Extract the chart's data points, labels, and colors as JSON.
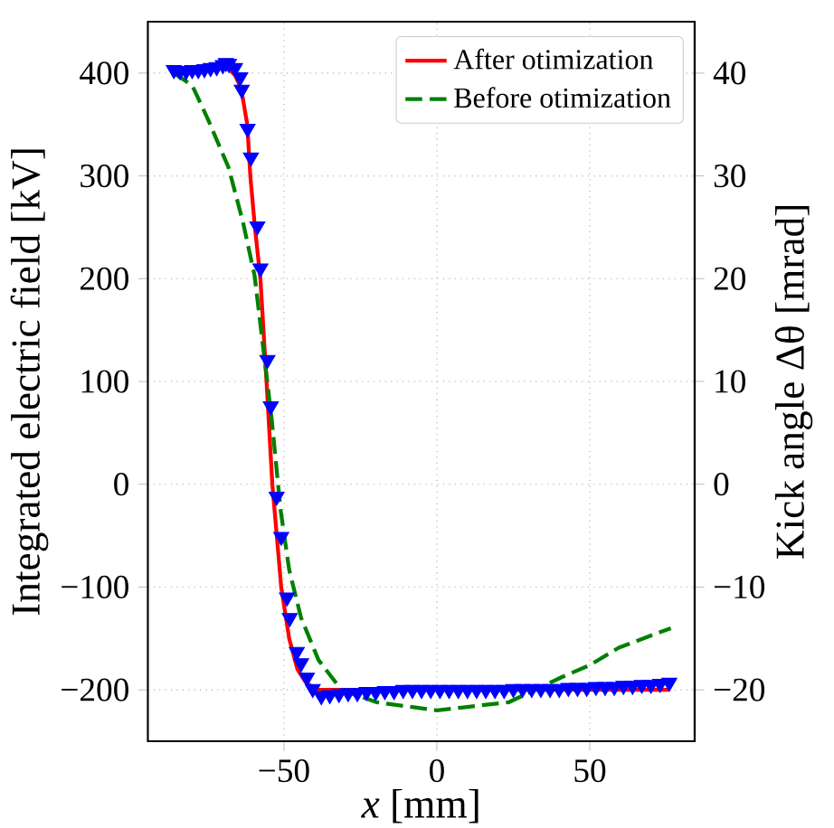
{
  "chart_data": {
    "type": "line",
    "xlabel": "*x* [mm]",
    "ylabel": "Integrated electric field [kV]",
    "y2label": "Kick angle Δθ [mrad]",
    "xlim": [
      -94.5,
      84.3
    ],
    "ylim": [
      -250,
      450
    ],
    "y2lim": [
      -25,
      45
    ],
    "xticks": [
      {
        "value": -50,
        "label": "−50"
      },
      0,
      50
    ],
    "yticks": [
      {
        "value": -200,
        "label": "−200"
      },
      {
        "value": -100,
        "label": "−100"
      },
      0,
      100,
      200,
      300,
      400
    ],
    "y2ticks": [
      {
        "value": -20,
        "label": "−20"
      },
      {
        "value": -10,
        "label": "−10"
      },
      0,
      10,
      20,
      30,
      40
    ],
    "grid": true,
    "legend": "top right",
    "series": [
      {
        "name": "After otimization",
        "type": "line",
        "color": "#ff0000",
        "line_style": "solid",
        "x": [
          -70,
          -68,
          -66,
          -64,
          -62,
          -61,
          -59.5,
          -57.7,
          -56.7,
          -55.7,
          -53.8,
          -50.9,
          -48.3,
          -45.6,
          -43,
          -40.5,
          -38.8,
          -35,
          -30,
          0,
          30,
          60,
          76
        ],
        "values": [
          405,
          404,
          398,
          385,
          350,
          300,
          250,
          200,
          150,
          100,
          0,
          -100,
          -150,
          -180,
          -192,
          -198,
          -200,
          -200,
          -200,
          null,
          -200,
          -200,
          -200
        ]
      },
      {
        "name": "Before otimization",
        "type": "line",
        "color": "#008000",
        "line_style": "dashed",
        "x": [
          -86,
          -80,
          -74.7,
          -68.1,
          -63.4,
          -59.6,
          -56.8,
          -54,
          -51.1,
          -48.3,
          -44.4,
          -38.7,
          -31.2,
          -19.8,
          0,
          23.6,
          40.6,
          50,
          59.5,
          76.5
        ],
        "values": [
          400,
          388,
          354,
          308,
          255,
          203,
          133,
          63,
          -25,
          -83,
          -130,
          -171,
          -200,
          -212,
          -220,
          -212,
          -188,
          -176,
          -159,
          -140
        ]
      },
      {
        "type": "scatter",
        "color": "#0000ff",
        "marker": "triangle",
        "x": [
          -86,
          -84,
          -82,
          -80,
          -78,
          -76,
          -74,
          -72,
          -70,
          -69,
          -68,
          -66,
          -64.3,
          -63.8,
          -61.9,
          -60.8,
          -58.7,
          -57.7,
          -55.4,
          -54.3,
          -52.4,
          -50.9,
          -49,
          -48.1,
          -45.8,
          -44.4,
          -42.5,
          -40.6,
          -37.8,
          -35,
          -32,
          -29,
          -26,
          -23,
          -20,
          -17,
          -14,
          -11,
          -8,
          -5,
          -2,
          1,
          4,
          7,
          10,
          13,
          16,
          19,
          22,
          25,
          28,
          31,
          34,
          37,
          40,
          43,
          46,
          49,
          52,
          55,
          58,
          61,
          64,
          67,
          70,
          73,
          76
        ],
        "values": [
          403,
          402,
          402,
          403,
          403,
          404,
          405,
          406,
          408,
          410,
          409,
          405,
          396,
          384,
          346,
          318,
          251,
          210,
          121,
          76,
          -12,
          -51,
          -110,
          -130,
          -163,
          -174,
          -188,
          -199,
          -206,
          -205,
          -204,
          -203,
          -203,
          -202,
          -202,
          -201,
          -201,
          -200,
          -200,
          -200,
          -200,
          -200,
          -200,
          -200,
          -200,
          -200,
          -200,
          -200,
          -200,
          -199,
          -199,
          -199,
          -199,
          -199,
          -199,
          -198,
          -198,
          -198,
          -197,
          -197,
          -197,
          -196,
          -196,
          -195,
          -195,
          -194,
          -193
        ]
      }
    ]
  }
}
